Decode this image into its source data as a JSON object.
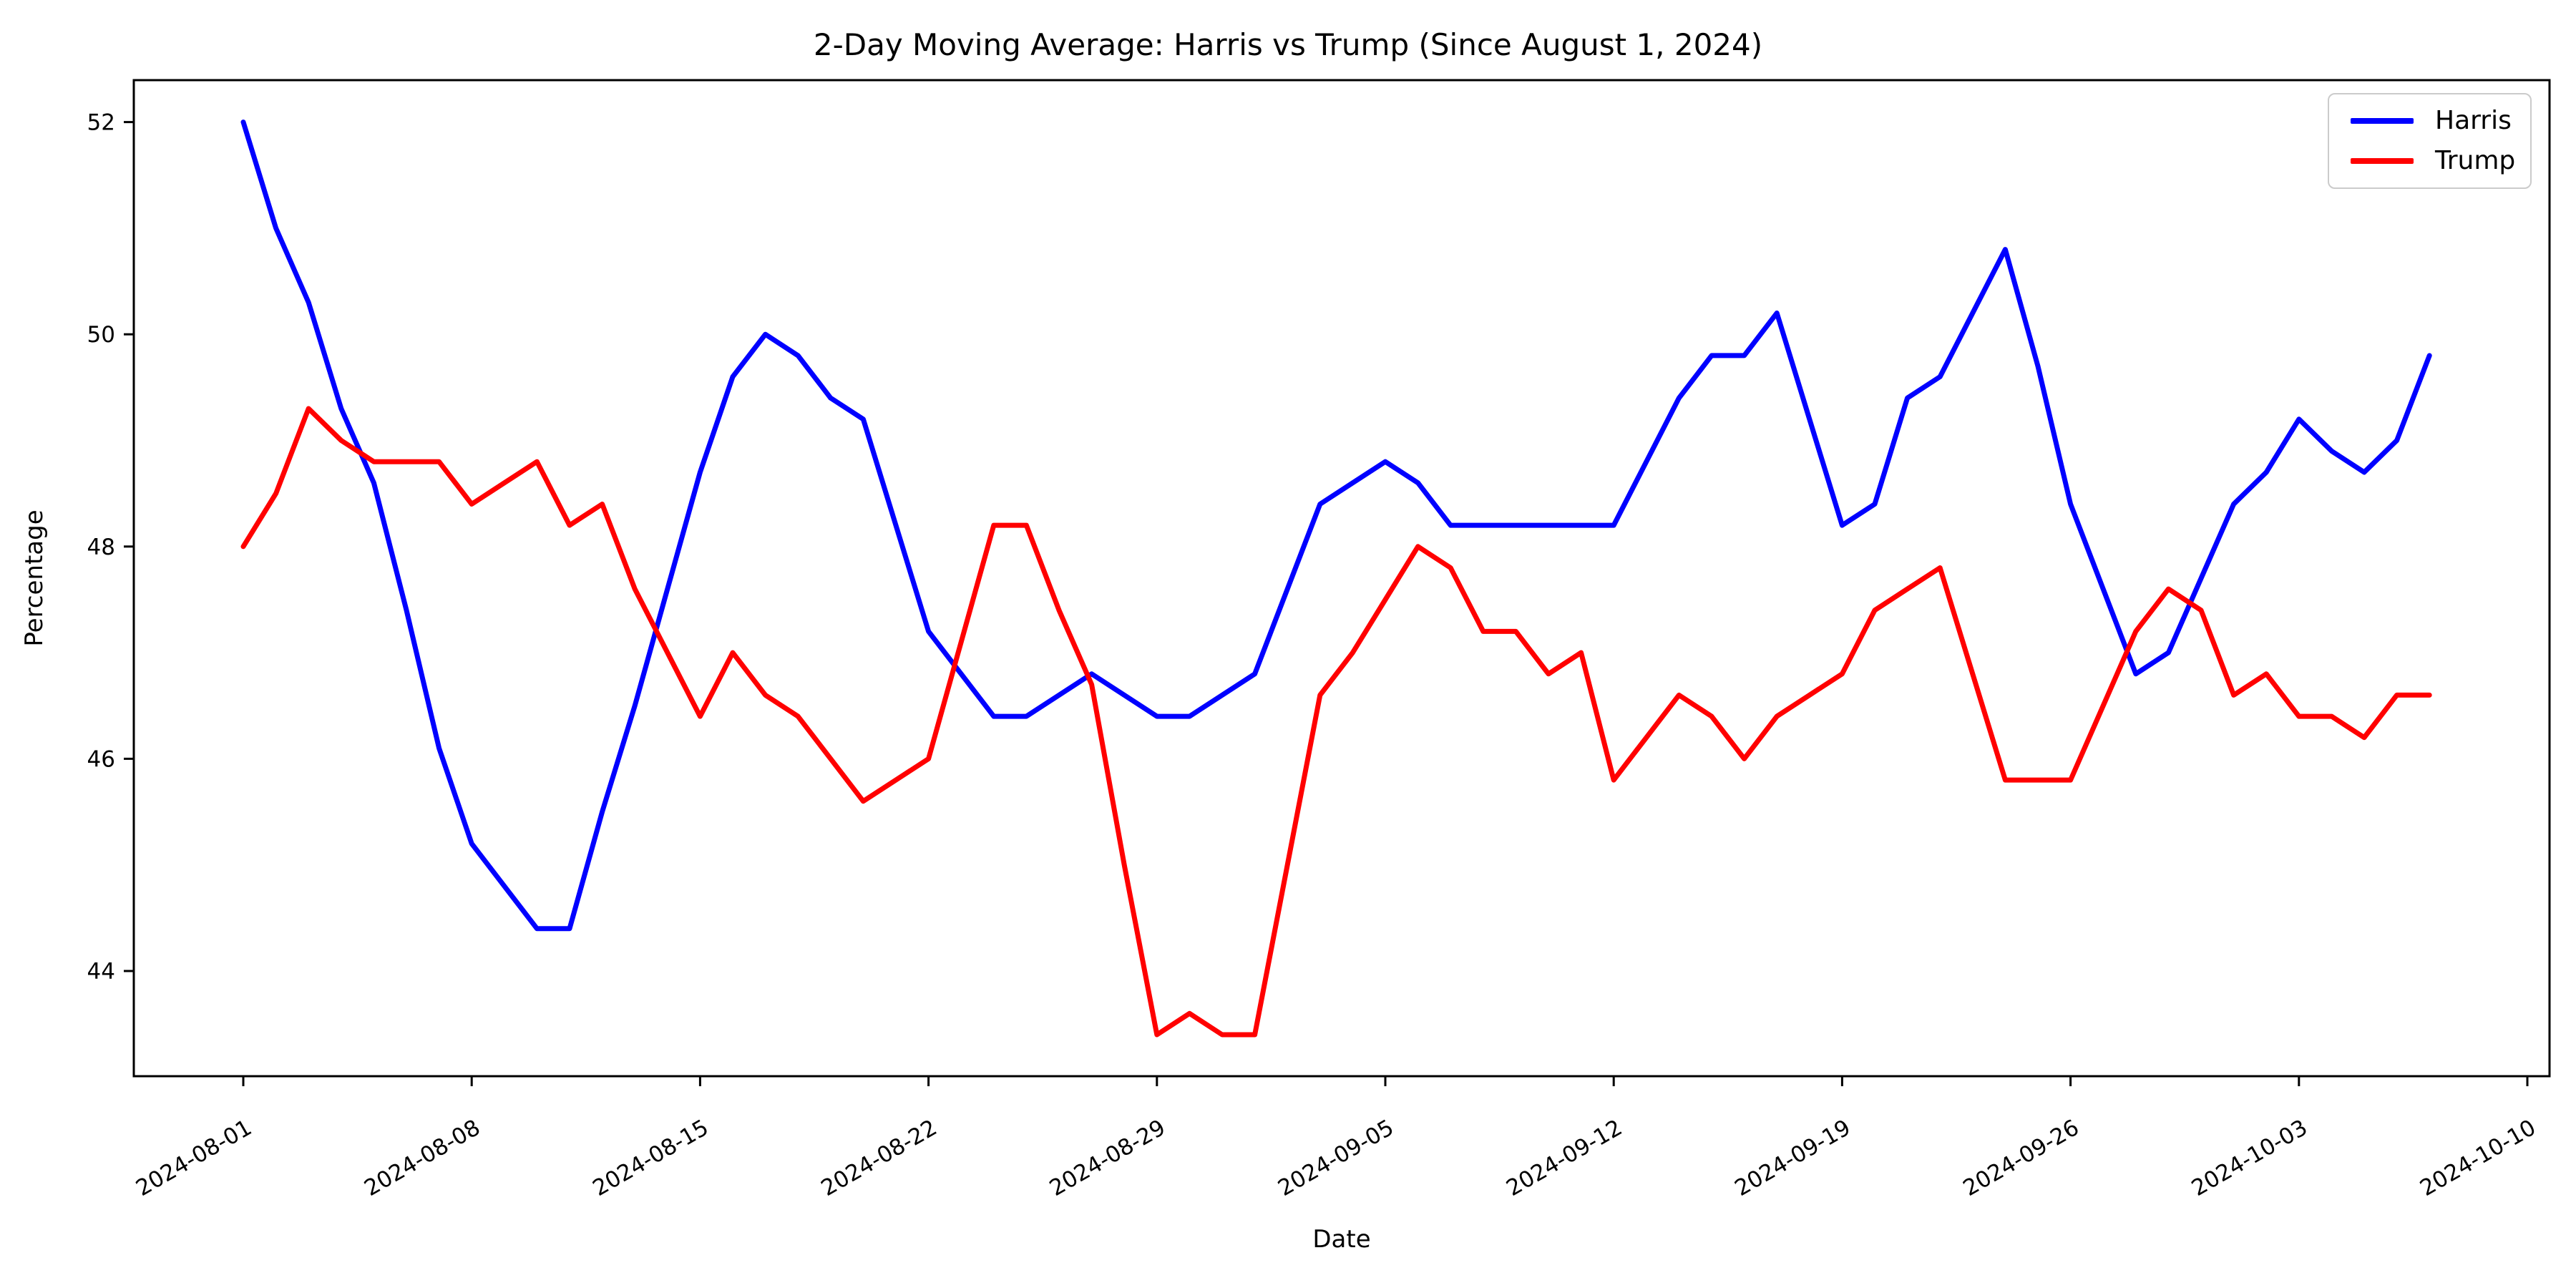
{
  "figure": {
    "title": "2-Day Moving Average: Harris vs Trump (Since August 1, 2024)",
    "xlabel": "Date",
    "ylabel": "Percentage",
    "background": "#ffffff",
    "spine_color": "#000000"
  },
  "chart_data": {
    "type": "line",
    "title": "2-Day Moving Average: Harris vs Trump (Since August 1, 2024)",
    "xlabel": "Date",
    "ylabel": "Percentage",
    "grid": false,
    "legend_position": "upper right",
    "ylim": [
      43.0,
      52.4
    ],
    "yticks": [
      44,
      46,
      48,
      50,
      52
    ],
    "xtick_labels": [
      "2024-08-01",
      "2024-08-08",
      "2024-08-15",
      "2024-08-22",
      "2024-08-29",
      "2024-09-05",
      "2024-09-12",
      "2024-09-19",
      "2024-09-26",
      "2024-10-03",
      "2024-10-10"
    ],
    "xtick_rotation_deg": 30,
    "x": [
      "2024-08-01",
      "2024-08-02",
      "2024-08-03",
      "2024-08-04",
      "2024-08-05",
      "2024-08-06",
      "2024-08-07",
      "2024-08-08",
      "2024-08-09",
      "2024-08-10",
      "2024-08-11",
      "2024-08-12",
      "2024-08-13",
      "2024-08-14",
      "2024-08-15",
      "2024-08-16",
      "2024-08-17",
      "2024-08-18",
      "2024-08-19",
      "2024-08-20",
      "2024-08-21",
      "2024-08-22",
      "2024-08-23",
      "2024-08-24",
      "2024-08-25",
      "2024-08-26",
      "2024-08-27",
      "2024-08-28",
      "2024-08-29",
      "2024-08-30",
      "2024-08-31",
      "2024-09-01",
      "2024-09-02",
      "2024-09-03",
      "2024-09-04",
      "2024-09-05",
      "2024-09-06",
      "2024-09-07",
      "2024-09-08",
      "2024-09-09",
      "2024-09-10",
      "2024-09-11",
      "2024-09-12",
      "2024-09-13",
      "2024-09-14",
      "2024-09-15",
      "2024-09-16",
      "2024-09-17",
      "2024-09-18",
      "2024-09-19",
      "2024-09-20",
      "2024-09-21",
      "2024-09-22",
      "2024-09-23",
      "2024-09-24",
      "2024-09-25",
      "2024-09-26",
      "2024-09-27",
      "2024-09-28",
      "2024-09-29",
      "2024-09-30",
      "2024-10-01",
      "2024-10-02",
      "2024-10-03",
      "2024-10-04",
      "2024-10-05",
      "2024-10-06",
      "2024-10-07"
    ],
    "series": [
      {
        "name": "Harris",
        "color": "#0000ff",
        "values": [
          52.0,
          51.0,
          50.3,
          49.3,
          48.6,
          47.4,
          46.1,
          45.2,
          44.8,
          44.4,
          44.4,
          45.5,
          46.5,
          47.6,
          48.7,
          49.6,
          50.0,
          49.8,
          49.4,
          49.2,
          48.2,
          47.2,
          46.8,
          46.4,
          46.4,
          46.6,
          46.8,
          46.6,
          46.4,
          46.4,
          46.6,
          46.8,
          47.6,
          48.4,
          48.6,
          48.8,
          48.6,
          48.2,
          48.2,
          48.2,
          48.2,
          48.2,
          48.2,
          48.8,
          49.4,
          49.8,
          49.8,
          50.2,
          49.2,
          48.2,
          48.4,
          49.4,
          49.6,
          50.2,
          50.8,
          49.7,
          48.4,
          47.6,
          46.8,
          47.0,
          47.7,
          48.4,
          48.7,
          49.2,
          48.9,
          48.7,
          49.0,
          49.8
        ]
      },
      {
        "name": "Trump",
        "color": "#ff0000",
        "values": [
          48.0,
          48.5,
          49.3,
          49.0,
          48.8,
          48.8,
          48.8,
          48.4,
          48.6,
          48.8,
          48.2,
          48.4,
          47.6,
          47.0,
          46.4,
          47.0,
          46.6,
          46.4,
          46.0,
          45.6,
          45.8,
          46.0,
          47.1,
          48.2,
          48.2,
          47.4,
          46.7,
          45.0,
          43.4,
          43.6,
          43.4,
          43.4,
          45.0,
          46.6,
          47.0,
          47.5,
          48.0,
          47.8,
          47.2,
          47.2,
          46.8,
          47.0,
          45.8,
          46.2,
          46.6,
          46.4,
          46.0,
          46.4,
          46.6,
          46.8,
          47.4,
          47.6,
          47.8,
          46.8,
          45.8,
          45.8,
          45.8,
          46.5,
          47.2,
          47.6,
          47.4,
          46.6,
          46.8,
          46.4,
          46.4,
          46.2,
          46.6,
          46.6
        ]
      }
    ]
  },
  "legend": {
    "items": [
      {
        "label": "Harris",
        "color": "#0000ff"
      },
      {
        "label": "Trump",
        "color": "#ff0000"
      }
    ]
  }
}
